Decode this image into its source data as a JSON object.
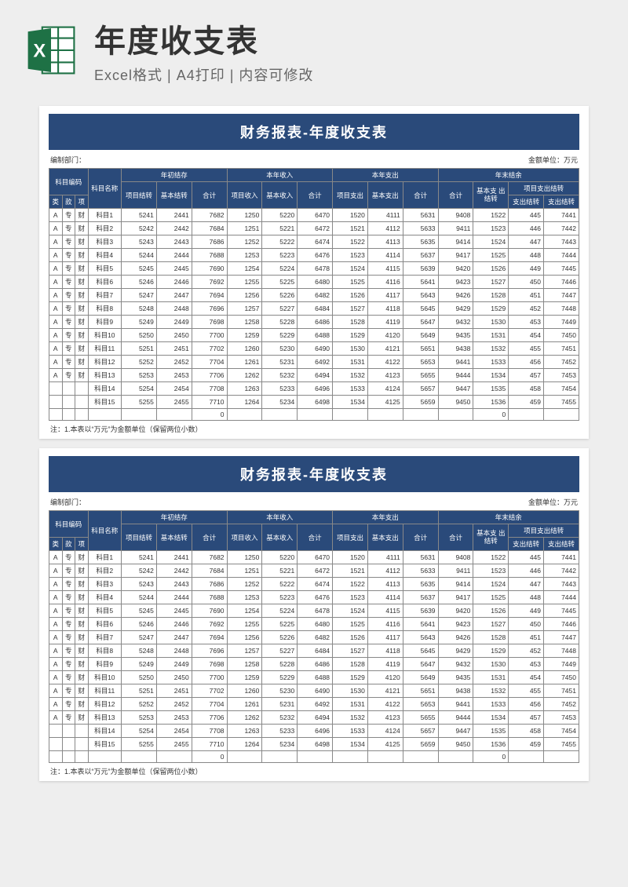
{
  "header": {
    "title": "年度收支表",
    "subtitle": "Excel格式 | A4打印 | 内容可修改",
    "icon_name": "excel-icon"
  },
  "colors": {
    "page_bg": "#eeeeee",
    "sheet_bg": "#ffffff",
    "header_bg": "#2a4a7a",
    "header_text": "#ffffff",
    "border": "#888888",
    "text": "#333333",
    "icon_green": "#1e7145",
    "icon_letter": "#ffffff"
  },
  "sheet": {
    "title": "财务报表-年度收支表",
    "meta_left": "编制部门：",
    "meta_right": "金额单位：万元",
    "footnote": "注：1.本表以“万元”为金额单位（保留两位小数）",
    "head": {
      "code_group": "科目编码",
      "name": "科目名称",
      "g1": "年初结存",
      "g2": "本年收入",
      "g3": "本年支出",
      "g4": "年末结余",
      "c_lei": "类",
      "c_kuan": "款",
      "c_xiang": "项",
      "c1a": "项目结转",
      "c1b": "基本结转",
      "c1c": "合计",
      "c2a": "项目收入",
      "c2b": "基本收入",
      "c2c": "合计",
      "c3a": "项目支出",
      "c3b": "基本支出",
      "c3c": "合计",
      "c4a": "合计",
      "c4b": "基本支\n出结转",
      "c4g": "项目支出结转",
      "c4c": "支出结转",
      "c4d": "支出结转"
    },
    "rows": [
      {
        "a": "A",
        "b": "专",
        "c": "财",
        "name": "科目1",
        "v": [
          5241,
          2441,
          7682,
          1250,
          5220,
          6470,
          1520,
          4111,
          5631,
          9408,
          1522,
          445,
          7441
        ]
      },
      {
        "a": "A",
        "b": "专",
        "c": "财",
        "name": "科目2",
        "v": [
          5242,
          2442,
          7684,
          1251,
          5221,
          6472,
          1521,
          4112,
          5633,
          9411,
          1523,
          446,
          7442
        ]
      },
      {
        "a": "A",
        "b": "专",
        "c": "财",
        "name": "科目3",
        "v": [
          5243,
          2443,
          7686,
          1252,
          5222,
          6474,
          1522,
          4113,
          5635,
          9414,
          1524,
          447,
          7443
        ]
      },
      {
        "a": "A",
        "b": "专",
        "c": "财",
        "name": "科目4",
        "v": [
          5244,
          2444,
          7688,
          1253,
          5223,
          6476,
          1523,
          4114,
          5637,
          9417,
          1525,
          448,
          7444
        ]
      },
      {
        "a": "A",
        "b": "专",
        "c": "财",
        "name": "科目5",
        "v": [
          5245,
          2445,
          7690,
          1254,
          5224,
          6478,
          1524,
          4115,
          5639,
          9420,
          1526,
          449,
          7445
        ]
      },
      {
        "a": "A",
        "b": "专",
        "c": "财",
        "name": "科目6",
        "v": [
          5246,
          2446,
          7692,
          1255,
          5225,
          6480,
          1525,
          4116,
          5641,
          9423,
          1527,
          450,
          7446
        ]
      },
      {
        "a": "A",
        "b": "专",
        "c": "财",
        "name": "科目7",
        "v": [
          5247,
          2447,
          7694,
          1256,
          5226,
          6482,
          1526,
          4117,
          5643,
          9426,
          1528,
          451,
          7447
        ]
      },
      {
        "a": "A",
        "b": "专",
        "c": "财",
        "name": "科目8",
        "v": [
          5248,
          2448,
          7696,
          1257,
          5227,
          6484,
          1527,
          4118,
          5645,
          9429,
          1529,
          452,
          7448
        ]
      },
      {
        "a": "A",
        "b": "专",
        "c": "财",
        "name": "科目9",
        "v": [
          5249,
          2449,
          7698,
          1258,
          5228,
          6486,
          1528,
          4119,
          5647,
          9432,
          1530,
          453,
          7449
        ]
      },
      {
        "a": "A",
        "b": "专",
        "c": "财",
        "name": "科目10",
        "v": [
          5250,
          2450,
          7700,
          1259,
          5229,
          6488,
          1529,
          4120,
          5649,
          9435,
          1531,
          454,
          7450
        ]
      },
      {
        "a": "A",
        "b": "专",
        "c": "财",
        "name": "科目11",
        "v": [
          5251,
          2451,
          7702,
          1260,
          5230,
          6490,
          1530,
          4121,
          5651,
          9438,
          1532,
          455,
          7451
        ]
      },
      {
        "a": "A",
        "b": "专",
        "c": "财",
        "name": "科目12",
        "v": [
          5252,
          2452,
          7704,
          1261,
          5231,
          6492,
          1531,
          4122,
          5653,
          9441,
          1533,
          456,
          7452
        ]
      },
      {
        "a": "A",
        "b": "专",
        "c": "财",
        "name": "科目13",
        "v": [
          5253,
          2453,
          7706,
          1262,
          5232,
          6494,
          1532,
          4123,
          5655,
          9444,
          1534,
          457,
          7453
        ]
      },
      {
        "a": "",
        "b": "",
        "c": "",
        "name": "科目14",
        "v": [
          5254,
          2454,
          7708,
          1263,
          5233,
          6496,
          1533,
          4124,
          5657,
          9447,
          1535,
          458,
          7454
        ]
      },
      {
        "a": "",
        "b": "",
        "c": "",
        "name": "科目15",
        "v": [
          5255,
          2455,
          7710,
          1264,
          5234,
          6498,
          1534,
          4125,
          5659,
          9450,
          1536,
          459,
          7455
        ]
      },
      {
        "a": "",
        "b": "",
        "c": "",
        "name": "",
        "v": [
          "",
          "",
          0,
          "",
          "",
          "",
          "",
          "",
          "",
          "",
          0,
          "",
          ""
        ]
      }
    ]
  }
}
